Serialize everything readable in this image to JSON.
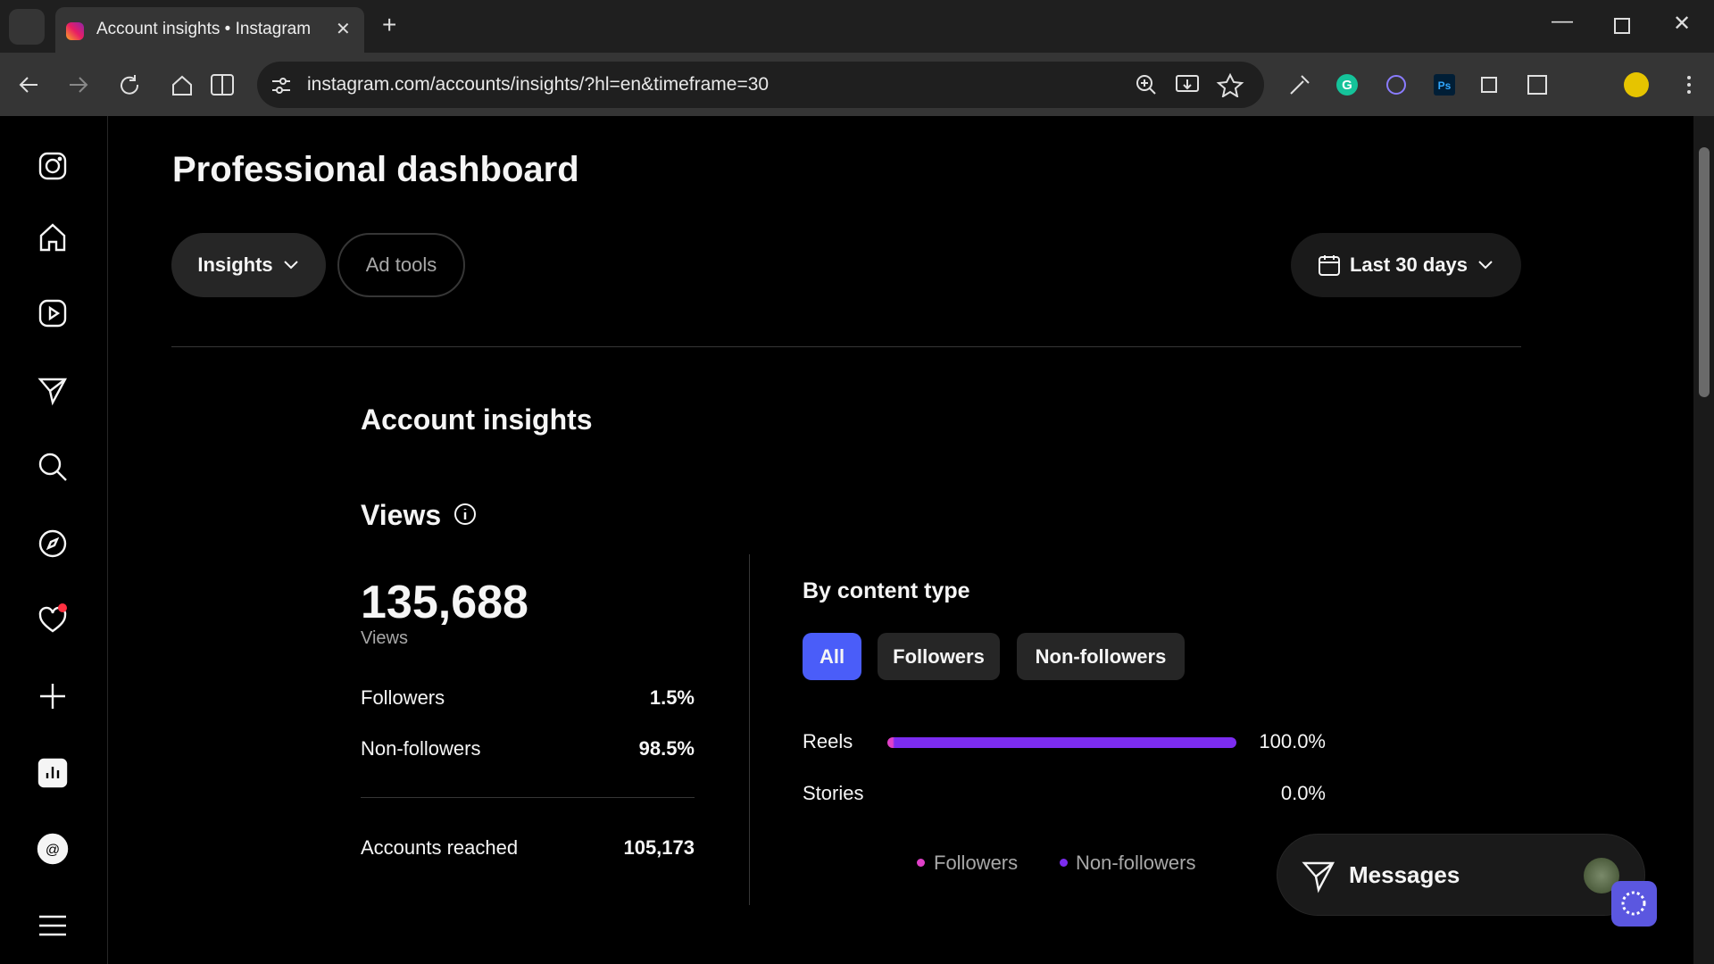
{
  "browser": {
    "tab_title": "Account insights • Instagram",
    "url": "instagram.com/accounts/insights/?hl=en&timeframe=30"
  },
  "header": {
    "title": "Professional dashboard",
    "tabs": [
      "Insights",
      "Ad tools"
    ],
    "timeframe": "Last 30 days"
  },
  "section": {
    "title": "Account insights",
    "metric": "Views",
    "total": "135,688",
    "total_label": "Views",
    "breakdown": [
      {
        "label": "Followers",
        "value": "1.5%"
      },
      {
        "label": "Non-followers",
        "value": "98.5%"
      }
    ],
    "reached": {
      "label": "Accounts reached",
      "value": "105,173"
    }
  },
  "content_type": {
    "title": "By content type",
    "filters": [
      "All",
      "Followers",
      "Non-followers"
    ],
    "rows": [
      {
        "label": "Reels",
        "value": "100.0%"
      },
      {
        "label": "Stories",
        "value": "0.0%"
      }
    ],
    "legend": [
      "Followers",
      "Non-followers"
    ]
  },
  "messages": {
    "label": "Messages"
  }
}
